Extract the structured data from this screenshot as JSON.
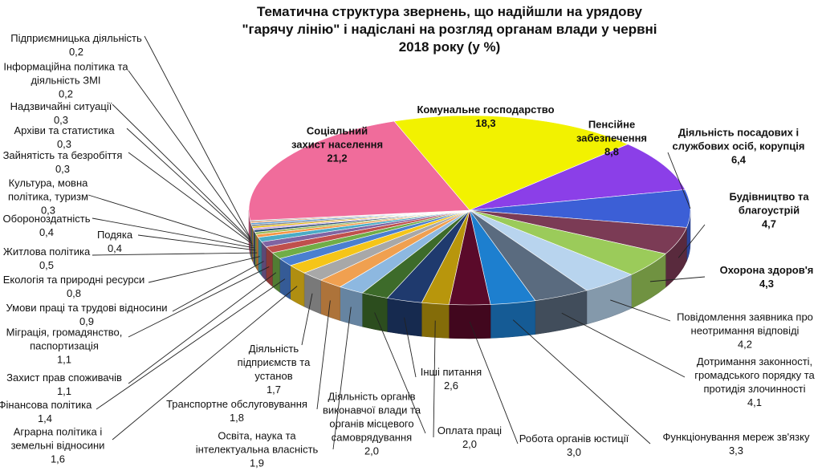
{
  "chart_data": {
    "type": "pie",
    "title": "Тематична структура звернень, що надійшли на урядову \"гарячу лінію\" і надіслані на розгляд органам влади у червні 2018 року (у %)",
    "categories": [
      "Комунальне господарство",
      "Пенсійне забезпечення",
      "Діяльність посадових і службових осіб, корупція",
      "Будівництво та благоустрій",
      "Охорона здоров'я",
      "Повідомлення заявника про неотримання відповіді",
      "Дотримання законності, громадського порядку та протидія злочинності",
      "Функціонування мереж зв'язку",
      "Робота органів юстиції",
      "Оплата праці",
      "Інші питання",
      "Діяльність органів виконавчої влади та органів місцевого самоврядування",
      "Освіта, наука та інтелектуальна власність",
      "Транспортне обслуговування",
      "Діяльність підприємств та установ",
      "Аграрна політика і земельні відносини",
      "Фінансова політика",
      "Захист прав споживачів",
      "Міграція, громадянство, паспортизація",
      "Умови праці та трудові відносини",
      "Екологія та природні ресурси",
      "Житлова політика",
      "Подяка",
      "Обороноздатність",
      "Культура, мовна політика, туризм",
      "Зайнятість та безробіття",
      "Архіви та статистика",
      "Надзвичайні ситуації",
      "Інформаційна політика та діяльність ЗМІ",
      "Підприємницька діяльність",
      "Соціальний захист населення"
    ],
    "values": [
      18.3,
      8.8,
      6.4,
      4.7,
      4.3,
      4.2,
      4.1,
      3.3,
      3.0,
      2.0,
      2.6,
      2.0,
      1.9,
      1.8,
      1.7,
      1.6,
      1.4,
      1.1,
      1.1,
      0.9,
      0.8,
      0.5,
      0.4,
      0.4,
      0.3,
      0.3,
      0.3,
      0.3,
      0.2,
      0.2,
      21.2
    ],
    "value_labels": [
      "18,3",
      "8,8",
      "6,4",
      "4,7",
      "4,3",
      "4,2",
      "4,1",
      "3,3",
      "3,0",
      "2,0",
      "2,6",
      "2,0",
      "1,9",
      "1,8",
      "1,7",
      "1,6",
      "1,4",
      "1,1",
      "1,1",
      "0,9",
      "0,8",
      "0,5",
      "0,4",
      "0,4",
      "0,3",
      "0,3",
      "0,3",
      "0,3",
      "0,2",
      "0,2",
      "21,2"
    ],
    "colors": [
      "#f2f200",
      "#8b3fe8",
      "#3c5fd6",
      "#7b3b55",
      "#9bcb5a",
      "#b8d4ee",
      "#5a6b7f",
      "#1d7fcf",
      "#5a0a2a",
      "#b8960c",
      "#1f3a6e",
      "#3d6b2a",
      "#8db8e0",
      "#f0a050",
      "#a8a8a8",
      "#f5c518",
      "#4a7fd0",
      "#70ad47",
      "#c0504d",
      "#8064a2",
      "#4bacc6",
      "#f79646",
      "#9bbb59",
      "#2c4d75",
      "#c9a0dc",
      "#e6b800",
      "#7f7f7f",
      "#5b9bd5",
      "#ed7d31",
      "#a5a5a5",
      "#f06c9b"
    ]
  }
}
